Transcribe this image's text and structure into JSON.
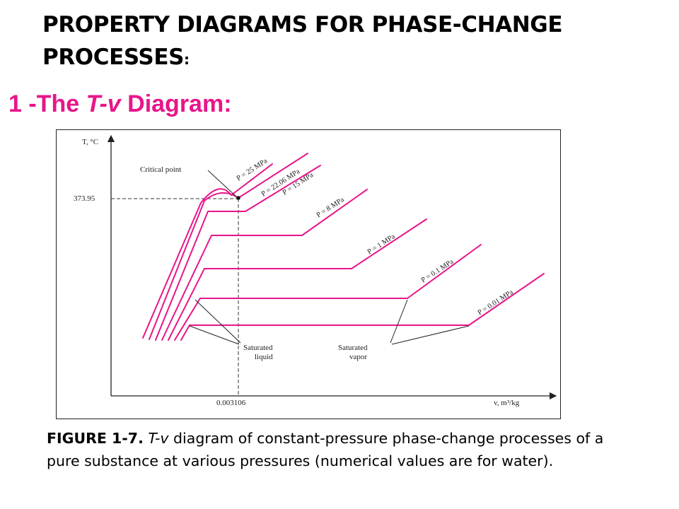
{
  "slide": {
    "title_main": "PROPERTY DIAGRAMS FOR PHASE-CHANGE PROCESSES",
    "title_colon": ":",
    "subtitle_prefix": "1 -The ",
    "subtitle_italic": "T-v",
    "subtitle_suffix": " Diagram:"
  },
  "diagram": {
    "y_axis_label": "T, °C",
    "x_axis_label": "v, m³/kg",
    "critical_temperature": "373.95",
    "critical_volume": "0.003106",
    "critical_point_label": "Critical point",
    "sat_liquid_label": [
      "Saturated",
      "liquid"
    ],
    "sat_vapor_label": [
      "Saturated",
      "vapor"
    ],
    "pressures": [
      "P = 25 MPa",
      "P = 22.06 MPa",
      "P = 15 MPa",
      "P = 8 MPa",
      "P = 1 MPa",
      "P = 0.1 MPa",
      "P = 0.01 MPa"
    ],
    "line_color": "#e8158a"
  },
  "caption": {
    "figure_number": "FIGURE 1-7.",
    "italic_term": "T-v",
    "text": " diagram of constant-pressure phase-change processes of a pure substance at various pressures (numerical values are for water)."
  }
}
